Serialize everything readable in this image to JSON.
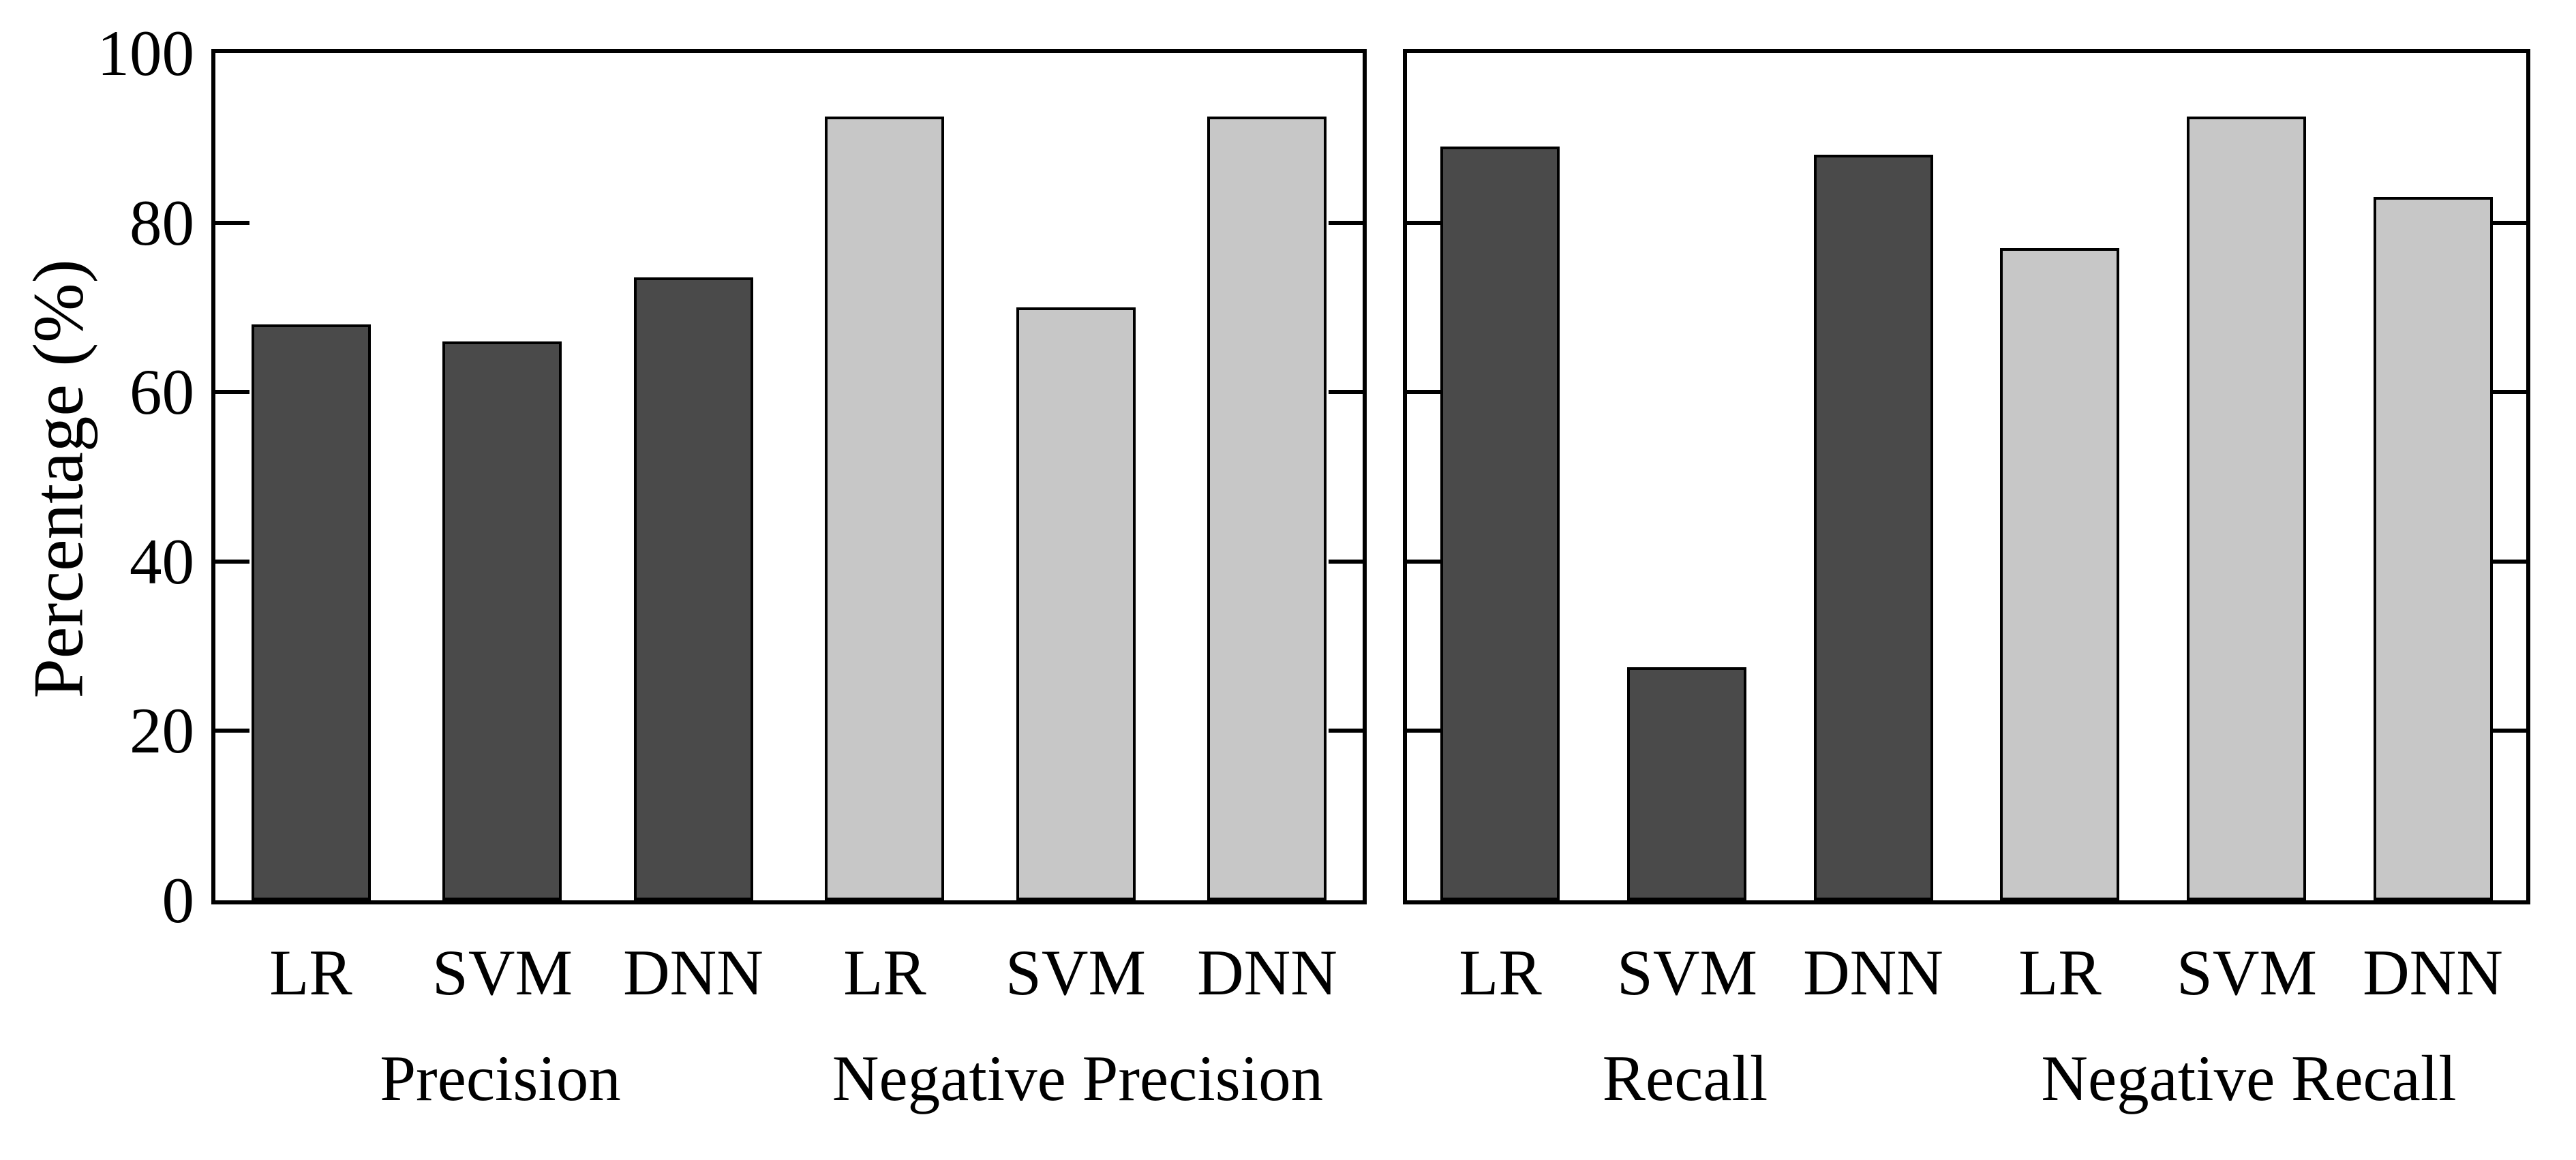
{
  "chart_data": {
    "type": "bar",
    "title": "",
    "ylabel": "Percentage (%)",
    "xlabel": "",
    "ylim": [
      0,
      100
    ],
    "yticks": [
      0,
      20,
      40,
      60,
      80,
      100
    ],
    "grid": "off",
    "legend": "none",
    "tick_direction": "in",
    "colors": {
      "dark": "#4a4a4a",
      "light": "#c7c7c7",
      "edge": "#000000"
    },
    "panels": [
      {
        "name": "precision-panel",
        "groups": [
          {
            "label": "Precision",
            "color": "dark",
            "categories": [
              "LR",
              "SVM",
              "DNN"
            ],
            "values": [
              68,
              66,
              73.5
            ]
          },
          {
            "label": "Negative Precision",
            "color": "light",
            "categories": [
              "LR",
              "SVM",
              "DNN"
            ],
            "values": [
              92.5,
              70,
              92.5
            ]
          }
        ]
      },
      {
        "name": "recall-panel",
        "groups": [
          {
            "label": "Recall",
            "color": "dark",
            "categories": [
              "LR",
              "SVM",
              "DNN"
            ],
            "values": [
              89,
              27.5,
              88
            ]
          },
          {
            "label": "Negative Recall",
            "color": "light",
            "categories": [
              "LR",
              "SVM",
              "DNN"
            ],
            "values": [
              77,
              92.5,
              83
            ]
          }
        ]
      }
    ]
  }
}
